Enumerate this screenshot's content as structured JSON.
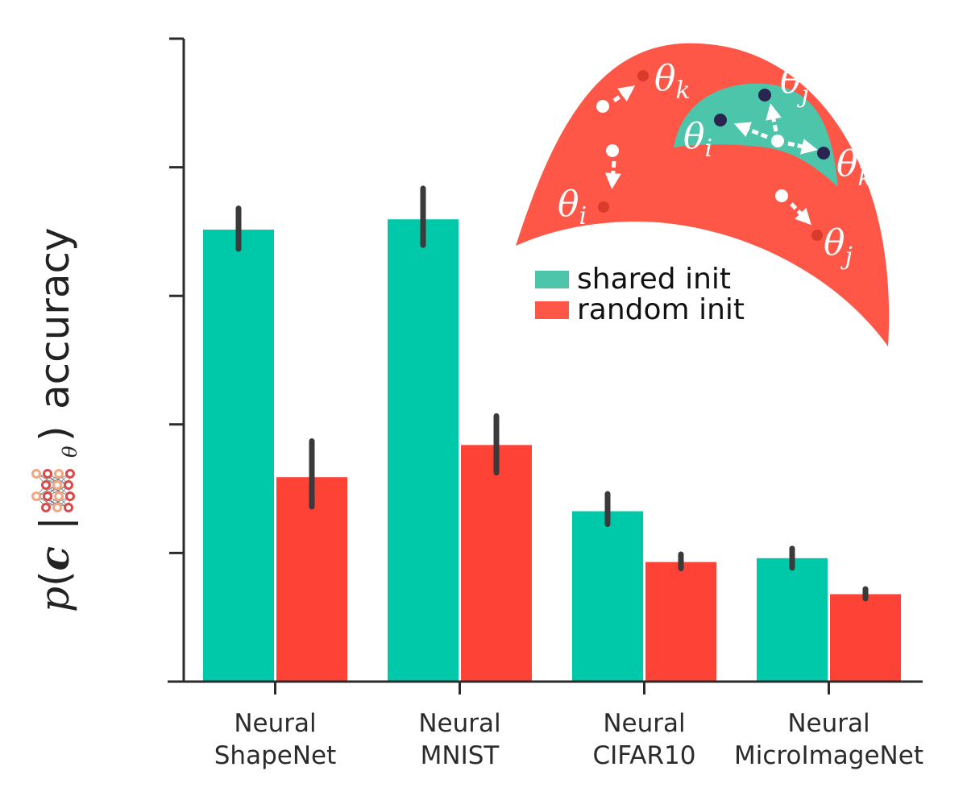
{
  "chart_data": {
    "type": "bar",
    "categories": [
      [
        "Neural",
        "ShapeNet"
      ],
      [
        "Neural",
        "MNIST"
      ],
      [
        "Neural",
        "CIFAR10"
      ],
      [
        "Neural",
        "MicroImageNet"
      ]
    ],
    "series": [
      {
        "name": "shared init",
        "color": "#00c9aa",
        "values": [
          0.703,
          0.719,
          0.265,
          0.192
        ],
        "err_low": [
          0.673,
          0.679,
          0.245,
          0.177
        ],
        "err_high": [
          0.736,
          0.767,
          0.292,
          0.207
        ]
      },
      {
        "name": "random init",
        "color": "#ff4236",
        "values": [
          0.318,
          0.368,
          0.186,
          0.136
        ],
        "err_low": [
          0.272,
          0.325,
          0.176,
          0.129
        ],
        "err_high": [
          0.374,
          0.413,
          0.198,
          0.144
        ]
      }
    ],
    "ylim": [
      0,
      1
    ],
    "ytick_count": 6,
    "ytick_labels_shown": false,
    "ylabel": {
      "prefix": "p",
      "open": "(",
      "var": "c",
      "bar": "|",
      "icon": "neural-network-icon",
      "icon_subscript": "θ",
      "close": ")",
      "suffix": "accuracy"
    },
    "xlabel": "",
    "title": "",
    "grid": false,
    "legend": {
      "placement": "top-right"
    }
  },
  "inset": {
    "outer_color": "#fe5747",
    "inner_color": "#4cc5aa",
    "theta": "θ",
    "labels": {
      "outer_k": "k",
      "inner_j": "j",
      "inner_i": "i",
      "inner_k": "k",
      "outer_i": "i",
      "outer_j": "j"
    }
  },
  "colors": {
    "axis": "#2b2b2b",
    "errorbar": "#3a3a3a",
    "inner_point": "#2a2450",
    "outer_point": "#d83b2c",
    "icon_node_dark": "#d94b4b",
    "icon_node_light": "#f4a582"
  }
}
